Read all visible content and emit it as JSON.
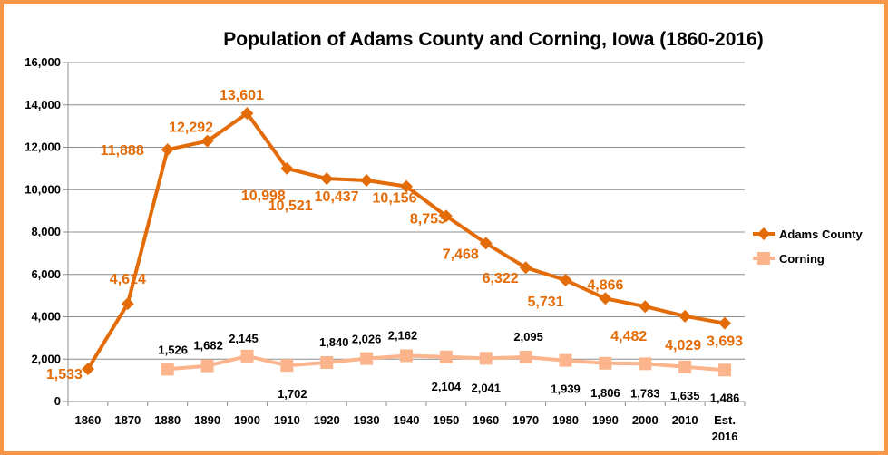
{
  "chart_data": {
    "type": "line",
    "title": "Population of Adams County and Corning, Iowa (1860-2016)",
    "categories": [
      "1860",
      "1870",
      "1880",
      "1890",
      "1900",
      "1910",
      "1920",
      "1930",
      "1940",
      "1950",
      "1960",
      "1970",
      "1980",
      "1990",
      "2000",
      "2010",
      "Est. 2016"
    ],
    "ylim": [
      0,
      16000
    ],
    "yticks": [
      "0",
      "2,000",
      "4,000",
      "6,000",
      "8,000",
      "10,000",
      "12,000",
      "14,000",
      "16,000"
    ],
    "grid": true,
    "legend_position": "right",
    "series": [
      {
        "name": "Adams County",
        "color": "#e36c09",
        "marker": "diamond",
        "values": [
          1533,
          4614,
          11888,
          12292,
          13601,
          10998,
          10521,
          10437,
          10156,
          8753,
          7468,
          6322,
          5731,
          4866,
          4482,
          4029,
          3693
        ],
        "labels": [
          "1,533",
          "4,614",
          "11,888",
          "12,292",
          "13,601",
          "10,998",
          "10,521",
          "10,437",
          "10,156",
          "8,753",
          "7,468",
          "6,322",
          "5,731",
          "4,866",
          "4,482",
          "4,029",
          "3,693"
        ]
      },
      {
        "name": "Corning",
        "color": "#fcb48c",
        "marker": "square",
        "values": [
          null,
          null,
          1526,
          1682,
          2145,
          1702,
          1840,
          2026,
          2162,
          2104,
          2041,
          2095,
          1939,
          1806,
          1783,
          1635,
          1486
        ],
        "labels": [
          null,
          null,
          "1,526",
          "1,682",
          "2,145",
          "1,702",
          "1,840",
          "2,026",
          "2,162",
          "2,104",
          "2,041",
          "2,095",
          "1,939",
          "1,806",
          "1,783",
          "1,635",
          "1,486"
        ]
      }
    ]
  }
}
